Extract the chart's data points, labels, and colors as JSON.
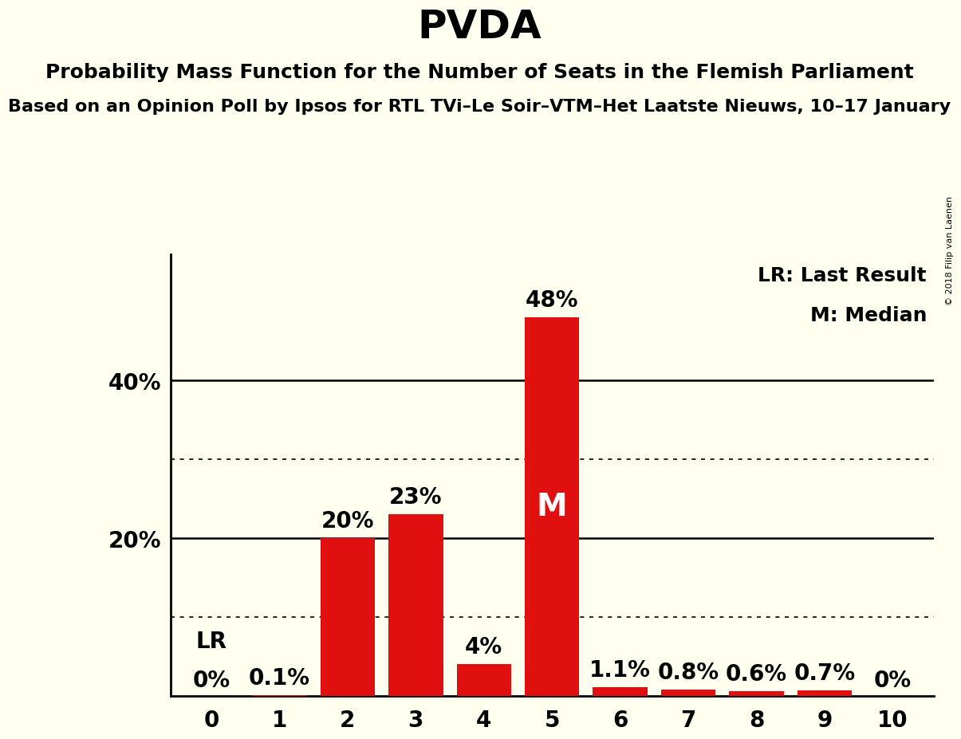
{
  "title": "PVDA",
  "subtitle": "Probability Mass Function for the Number of Seats in the Flemish Parliament",
  "subtitle2": "Based on an Opinion Poll by Ipsos for RTL TVi–Le Soir–VTM–Het Laatste Nieuws, 10–17 January",
  "copyright": "© 2018 Filip van Laenen",
  "categories": [
    0,
    1,
    2,
    3,
    4,
    5,
    6,
    7,
    8,
    9,
    10
  ],
  "values": [
    0.0,
    0.1,
    20.0,
    23.0,
    4.0,
    48.0,
    1.1,
    0.8,
    0.6,
    0.7,
    0.0
  ],
  "labels": [
    "0%",
    "0.1%",
    "20%",
    "23%",
    "4%",
    "48%",
    "1.1%",
    "0.8%",
    "0.6%",
    "0.7%",
    "0%"
  ],
  "bar_color": "#e01010",
  "background_color": "#fffff0",
  "median_seat": 5,
  "lr_seat": 0,
  "yticks": [
    20,
    40
  ],
  "ytick_labels": [
    "20%",
    "40%"
  ],
  "dotted_yticks": [
    10,
    30
  ],
  "ylim": [
    0,
    56
  ],
  "legend_lr": "LR: Last Result",
  "legend_m": "M: Median",
  "title_fontsize": 36,
  "subtitle_fontsize": 18,
  "subtitle2_fontsize": 16,
  "axis_fontsize": 20,
  "bar_label_fontsize": 20,
  "legend_fontsize": 18,
  "median_label_fontsize": 28,
  "lr_label_fontsize": 20
}
